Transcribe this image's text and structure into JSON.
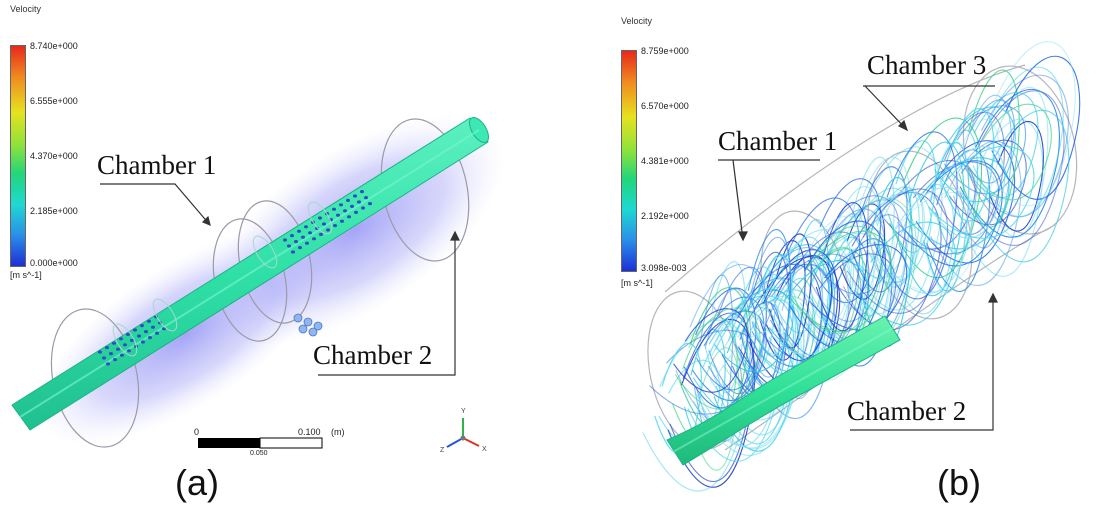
{
  "panel_a": {
    "legend_title": "Velocity",
    "ticks": [
      "8.740e+000",
      "6.555e+000",
      "4.370e+000",
      "2.185e+000",
      "0.000e+000"
    ],
    "unit": "[m s^-1]",
    "callout_chamber_1": "Chamber 1",
    "callout_chamber_2": "Chamber 2",
    "scale_start": "0",
    "scale_end": "0.100",
    "scale_unit": "(m)",
    "scale_mid": "0.050",
    "label": "(a)"
  },
  "panel_b": {
    "legend_title": "Velocity",
    "ticks": [
      "8.759e+000",
      "6.570e+000",
      "4.381e+000",
      "2.192e+000",
      "3.098e-003"
    ],
    "unit": "[m s^-1]",
    "callout_chamber_1": "Chamber 1",
    "callout_chamber_2": "Chamber 2",
    "callout_chamber_3": "Chamber 3",
    "label": "(b)"
  },
  "colors": {
    "pipe": "#2fe0a6",
    "pipe_edge": "#1db384",
    "halo": "#6f6ff0",
    "streamline_blue": "#2a6ae6",
    "streamline_cyan": "#36c9e6"
  }
}
